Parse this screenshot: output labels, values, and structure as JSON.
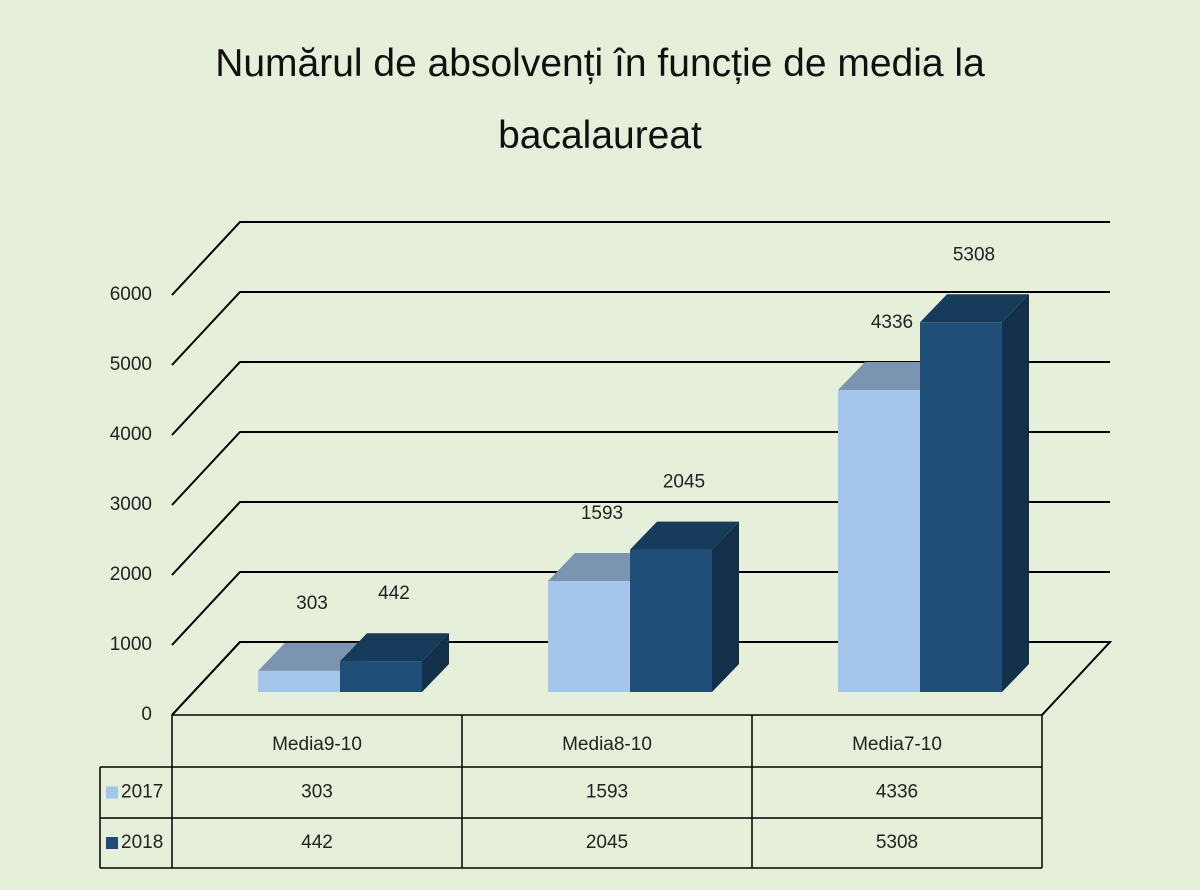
{
  "chart_data": {
    "type": "bar3d",
    "title": "Numărul de absolvenți în funcție de media la bacalaureat",
    "categories": [
      "Media9-10",
      "Media8-10",
      "Media7-10"
    ],
    "series": [
      {
        "name": "2017",
        "color": "#a4c6ea",
        "values": [
          303,
          1593,
          4336
        ]
      },
      {
        "name": "2018",
        "color": "#1f4e79",
        "values": [
          442,
          2045,
          5308
        ]
      }
    ],
    "ylim": [
      0,
      6000
    ],
    "yticks": [
      0,
      1000,
      2000,
      3000,
      4000,
      5000,
      6000
    ],
    "grid": true,
    "data_table": true
  }
}
